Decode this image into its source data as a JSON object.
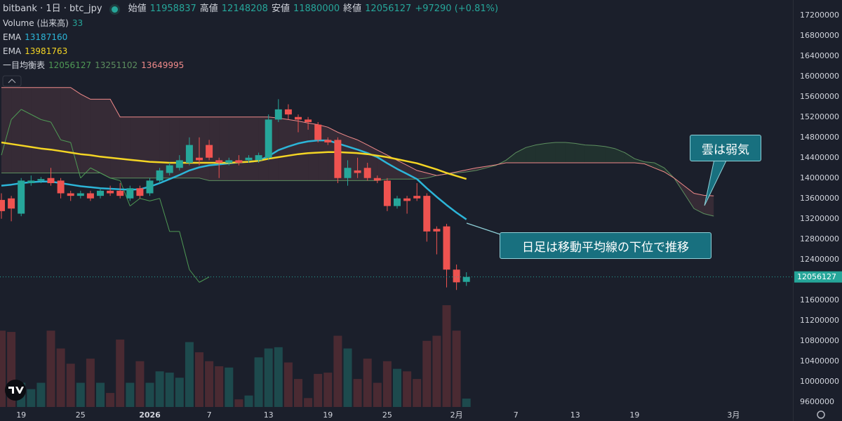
{
  "chart_data": {
    "type": "candlestick",
    "title": "bitbank · 1日 · btc_jpy",
    "legend_labels": {
      "open": "始値",
      "high": "高値",
      "low": "安値",
      "close": "終値",
      "change": "+97290 (+0.81%)"
    },
    "categories": [
      null,
      null,
      "19",
      null,
      null,
      null,
      null,
      null,
      "25",
      null,
      null,
      null,
      null,
      null,
      null,
      "2026",
      null,
      null,
      null,
      null,
      null,
      "7",
      null,
      null,
      null,
      null,
      null,
      "13",
      null,
      null,
      null,
      null,
      null,
      "19",
      null,
      null,
      null,
      null,
      null,
      "25",
      null,
      null,
      null,
      null,
      null,
      null,
      "2月",
      null,
      null,
      null,
      null,
      null,
      "7",
      null,
      null,
      null,
      null,
      null,
      "13",
      null,
      null,
      null,
      null,
      null,
      "19",
      null,
      null,
      null,
      null,
      null,
      null,
      null,
      null,
      null,
      "3月",
      null,
      null,
      null,
      null,
      null,
      null
    ],
    "open": [
      13570000,
      13600000,
      13300000,
      13900000,
      13950000,
      14000000,
      13950000,
      13700000,
      13650000,
      13700000,
      13650000,
      13750000,
      13750000,
      13600000,
      13800000,
      13700000,
      13950000,
      14100000,
      14200000,
      14300000,
      14400000,
      14650000,
      14350000,
      14300000,
      14350000,
      14350000,
      14350000,
      14400000,
      15150000,
      15350000,
      15200000,
      15150000,
      15050000,
      14750000,
      14750000,
      14000000,
      14150000,
      14200000,
      14000000,
      13950000,
      13450000,
      13600000,
      13650000,
      13650000,
      13000000,
      13050000,
      12200000,
      11958837,
      null,
      null,
      null,
      null,
      null,
      null,
      null,
      null,
      null,
      null,
      null,
      null,
      null,
      null,
      null,
      null,
      null,
      null,
      null,
      null,
      null,
      null,
      null,
      null,
      null,
      null,
      null,
      null,
      null,
      null,
      null,
      null,
      null
    ],
    "high": [
      13700000,
      13650000,
      14000000,
      14050000,
      14020000,
      14200000,
      14000000,
      13750000,
      13750000,
      13750000,
      13800000,
      13850000,
      13900000,
      13850000,
      13850000,
      14000000,
      14200000,
      14300000,
      14450000,
      14800000,
      14800000,
      14750000,
      14400000,
      14400000,
      14450000,
      14450000,
      14500000,
      15250000,
      15550000,
      15450000,
      15250000,
      15200000,
      15100000,
      14800000,
      14800000,
      14350000,
      14400000,
      14300000,
      14050000,
      14000000,
      13650000,
      13650000,
      13900000,
      13700000,
      13050000,
      13100000,
      12300000,
      12148208,
      null,
      null,
      null,
      null,
      null,
      null,
      null,
      null,
      null,
      null,
      null,
      null,
      null,
      null,
      null,
      null,
      null,
      null,
      null,
      null,
      null,
      null,
      null,
      null,
      null,
      null,
      null,
      null,
      null,
      null,
      null,
      null,
      null
    ],
    "low": [
      13200000,
      13150000,
      13250000,
      13850000,
      13900000,
      13850000,
      13600000,
      13550000,
      13600000,
      13550000,
      13600000,
      13650000,
      13600000,
      13550000,
      13600000,
      13650000,
      13900000,
      14050000,
      14150000,
      14250000,
      14250000,
      14350000,
      14000000,
      14250000,
      14250000,
      14300000,
      14300000,
      14350000,
      15100000,
      15150000,
      14900000,
      14950000,
      14700000,
      14650000,
      13900000,
      13850000,
      14000000,
      13950000,
      13900000,
      13350000,
      13400000,
      13300000,
      13550000,
      12750000,
      12500000,
      11850000,
      11800000,
      11880000,
      null,
      null,
      null,
      null,
      null,
      null,
      null,
      null,
      null,
      null,
      null,
      null,
      null,
      null,
      null,
      null,
      null,
      null,
      null,
      null,
      null,
      null,
      null,
      null,
      null,
      null,
      null,
      null,
      null,
      null,
      null,
      null,
      null
    ],
    "close": [
      13350000,
      13400000,
      13950000,
      13950000,
      13980000,
      13900000,
      13700000,
      13650000,
      13700000,
      13600000,
      13750000,
      13700000,
      13650000,
      13800000,
      13650000,
      13950000,
      14150000,
      14250000,
      14350000,
      14650000,
      14350000,
      14400000,
      14300000,
      14350000,
      14300000,
      14400000,
      14450000,
      15150000,
      15350000,
      15250000,
      15150000,
      15100000,
      14750000,
      14700000,
      14000000,
      14200000,
      14100000,
      14000000,
      13950000,
      13450000,
      13600000,
      13550000,
      13600000,
      12950000,
      12950000,
      12200000,
      11950000,
      12056127,
      null,
      null,
      null,
      null,
      null,
      null,
      null,
      null,
      null,
      null,
      null,
      null,
      null,
      null,
      null,
      null,
      null,
      null,
      null,
      null,
      null,
      null,
      null,
      null,
      null,
      null,
      null,
      null,
      null,
      null,
      null,
      null,
      null
    ],
    "up_color": "#26a69a",
    "down_color": "#ef5350",
    "ylim": [
      9500000,
      17500000
    ],
    "yticks": [
      9600000,
      10000000,
      10400000,
      10800000,
      11200000,
      11600000,
      12000000,
      12400000,
      12800000,
      13200000,
      13600000,
      14000000,
      14400000,
      14800000,
      15200000,
      15600000,
      16000000,
      16400000,
      16800000,
      17200000
    ],
    "grid": false,
    "volume": {
      "name": "Volume (出来高)",
      "up_color": "#1d4a4d",
      "down_color": "#4a2a32",
      "values": [
        300,
        295,
        95,
        70,
        95,
        300,
        230,
        170,
        95,
        190,
        95,
        55,
        265,
        95,
        180,
        95,
        140,
        135,
        115,
        255,
        215,
        180,
        160,
        155,
        30,
        45,
        195,
        230,
        235,
        175,
        110,
        35,
        130,
        135,
        280,
        230,
        110,
        190,
        95,
        180,
        150,
        140,
        110,
        260,
        280,
        400,
        300,
        33,
        null,
        null,
        null,
        null,
        null,
        null,
        null,
        null,
        null,
        null,
        null,
        null,
        null,
        null,
        null,
        null,
        null,
        null,
        null,
        null,
        null,
        null,
        null,
        null,
        null,
        null,
        null,
        null,
        null,
        null,
        null,
        null,
        null
      ]
    },
    "ema": [
      {
        "name": "EMA",
        "color": "#2cb5d8",
        "values": [
          13850000,
          13870000,
          13900000,
          13920000,
          13930000,
          13930000,
          13900000,
          13870000,
          13840000,
          13820000,
          13800000,
          13790000,
          13780000,
          13770000,
          13780000,
          13830000,
          13900000,
          13980000,
          14060000,
          14150000,
          14210000,
          14250000,
          14270000,
          14290000,
          14310000,
          14320000,
          14340000,
          14430000,
          14550000,
          14620000,
          14680000,
          14720000,
          14740000,
          14740000,
          14680000,
          14620000,
          14560000,
          14490000,
          14410000,
          14290000,
          14180000,
          14080000,
          13980000,
          13800000,
          13630000,
          13470000,
          13320000,
          13187160,
          null,
          null,
          null,
          null,
          null,
          null,
          null,
          null,
          null,
          null,
          null,
          null,
          null,
          null,
          null,
          null,
          null,
          null,
          null,
          null,
          null,
          null,
          null,
          null,
          null,
          null,
          null,
          null,
          null,
          null,
          null,
          null,
          null
        ]
      },
      {
        "name": "EMA",
        "color": "#f4d524",
        "values": [
          14700000,
          14670000,
          14640000,
          14610000,
          14580000,
          14560000,
          14530000,
          14500000,
          14470000,
          14450000,
          14420000,
          14400000,
          14380000,
          14360000,
          14340000,
          14320000,
          14310000,
          14300000,
          14300000,
          14300000,
          14300000,
          14300000,
          14300000,
          14300000,
          14310000,
          14320000,
          14340000,
          14380000,
          14410000,
          14440000,
          14470000,
          14490000,
          14500000,
          14510000,
          14510000,
          14500000,
          14490000,
          14470000,
          14440000,
          14410000,
          14370000,
          14330000,
          14290000,
          14230000,
          14170000,
          14100000,
          14040000,
          13981763,
          null,
          null,
          null,
          null,
          null,
          null,
          null,
          null,
          null,
          null,
          null,
          null,
          null,
          null,
          null,
          null,
          null,
          null,
          null,
          null,
          null,
          null,
          null,
          null,
          null,
          null,
          null,
          null,
          null,
          null,
          null,
          null,
          null
        ]
      }
    ],
    "ichimoku": {
      "name": "一目均衡表",
      "lagging_color": "#4f9a55",
      "fill_up": "rgba(76,175,80,0.13)",
      "fill_down": "rgba(242,120,130,0.13)",
      "span_a": {
        "color": "#5d8f5f",
        "values": [
          14100000,
          14100000,
          14100000,
          14100000,
          14100000,
          14100000,
          14100000,
          14100000,
          14100000,
          14100000,
          14100000,
          14000000,
          14000000,
          14000000,
          14000000,
          14000000,
          14000000,
          14000000,
          14000000,
          14000000,
          14000000,
          13950000,
          13950000,
          13950000,
          13950000,
          13950000,
          13950000,
          13950000,
          13950000,
          13950000,
          13950000,
          13950000,
          13950000,
          13950000,
          13950000,
          13950000,
          13950000,
          13950000,
          13950000,
          13980000,
          13980000,
          13980000,
          13980000,
          14000000,
          14050000,
          14080000,
          14100000,
          14120000,
          14150000,
          14200000,
          14250000,
          14350000,
          14500000,
          14600000,
          14650000,
          14680000,
          14700000,
          14700000,
          14680000,
          14650000,
          14640000,
          14620000,
          14580000,
          14500000,
          14380000,
          14320000,
          14300000,
          14200000,
          14000000,
          13700000,
          13400000,
          13300000,
          13251102,
          null,
          null,
          null,
          null,
          null,
          null,
          null,
          null
        ]
      },
      "span_b": {
        "color": "#f08a8a",
        "values": [
          15780000,
          15780000,
          15780000,
          15780000,
          15780000,
          15780000,
          15780000,
          15780000,
          15650000,
          15550000,
          15550000,
          15550000,
          15200000,
          15200000,
          15200000,
          15200000,
          15200000,
          15200000,
          15200000,
          15200000,
          15200000,
          15200000,
          15200000,
          15200000,
          15200000,
          15200000,
          15200000,
          15200000,
          15180000,
          15150000,
          15120000,
          15080000,
          15050000,
          15000000,
          14900000,
          14820000,
          14750000,
          14650000,
          14550000,
          14450000,
          14350000,
          14250000,
          14150000,
          14100000,
          14050000,
          14080000,
          14120000,
          14160000,
          14200000,
          14230000,
          14260000,
          14300000,
          14300000,
          14300000,
          14300000,
          14300000,
          14300000,
          14300000,
          14300000,
          14300000,
          14300000,
          14300000,
          14300000,
          14300000,
          14300000,
          14280000,
          14200000,
          14120000,
          14000000,
          13850000,
          13700000,
          13660000,
          13649995,
          null,
          null,
          null,
          null,
          null,
          null,
          null,
          null
        ]
      }
    },
    "annotations": [
      {
        "text": "雲は弱気"
      },
      {
        "text": "日足は移動平均線の下位で推移"
      }
    ]
  }
}
